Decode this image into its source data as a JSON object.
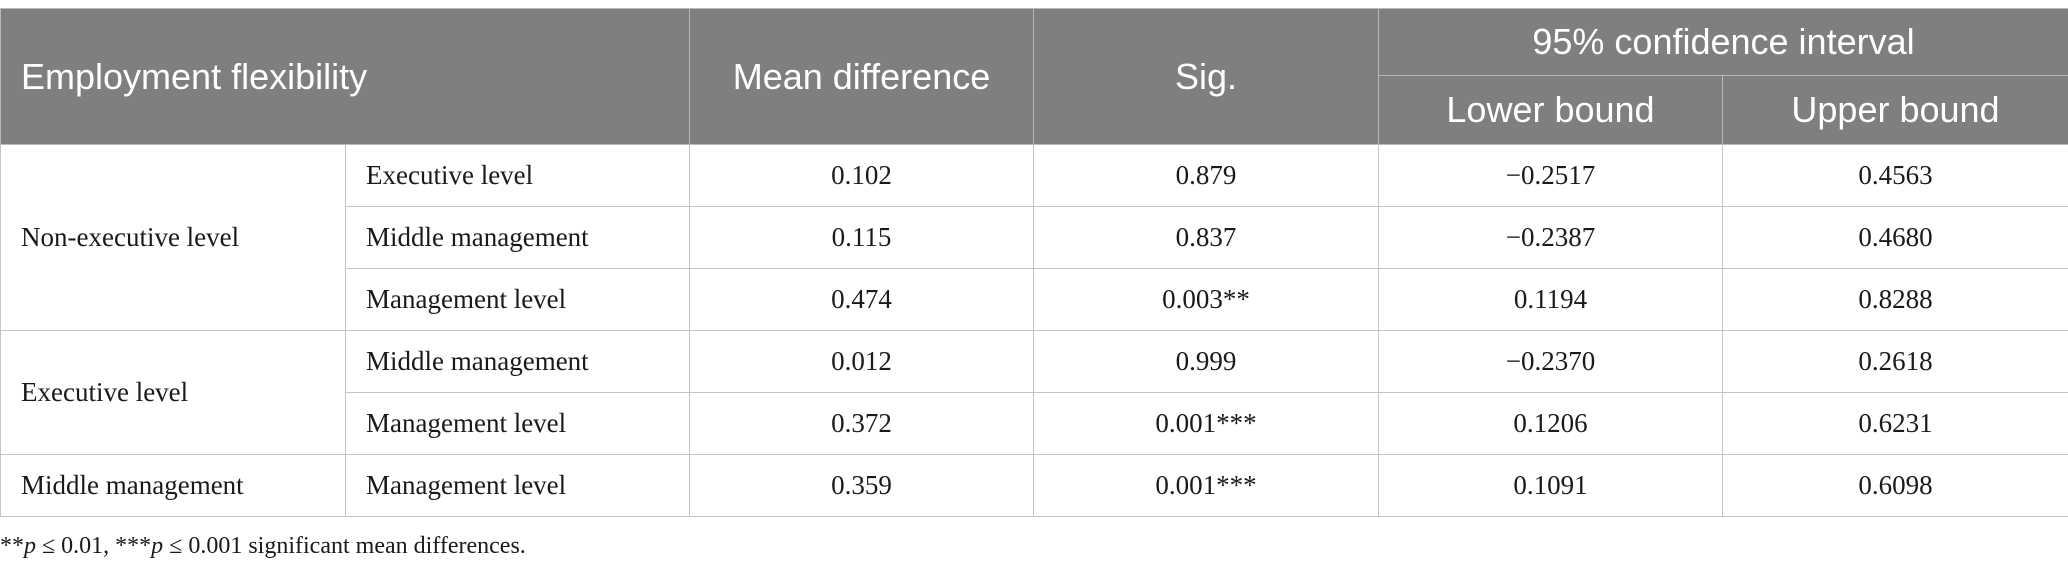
{
  "header": {
    "col1": "Employment flexibility",
    "col_mean": "Mean difference",
    "col_sig": "Sig.",
    "ci_group": "95% confidence interval",
    "col_lower": "Lower bound",
    "col_upper": "Upper bound"
  },
  "groups": [
    {
      "label": "Non-executive level",
      "rows": [
        {
          "comparison": "Executive level",
          "mean_diff": "0.102",
          "sig": "0.879",
          "lower": "−0.2517",
          "upper": "0.4563"
        },
        {
          "comparison": "Middle management",
          "mean_diff": "0.115",
          "sig": "0.837",
          "lower": "−0.2387",
          "upper": "0.4680"
        },
        {
          "comparison": "Management level",
          "mean_diff": "0.474",
          "sig": "0.003**",
          "lower": "0.1194",
          "upper": "0.8288"
        }
      ]
    },
    {
      "label": "Executive level",
      "rows": [
        {
          "comparison": "Middle management",
          "mean_diff": "0.012",
          "sig": "0.999",
          "lower": "−0.2370",
          "upper": "0.2618"
        },
        {
          "comparison": "Management level",
          "mean_diff": "0.372",
          "sig": "0.001***",
          "lower": "0.1206",
          "upper": "0.6231"
        }
      ]
    },
    {
      "label": "Middle management",
      "rows": [
        {
          "comparison": "Management level",
          "mean_diff": "0.359",
          "sig": "0.001***",
          "lower": "0.1091",
          "upper": "0.6098"
        }
      ]
    }
  ],
  "footnote": {
    "a": "**",
    "p1": "p",
    "b": " ≤ 0.01, ***",
    "p2": "p",
    "c": " ≤ 0.001 significant mean differences."
  }
}
